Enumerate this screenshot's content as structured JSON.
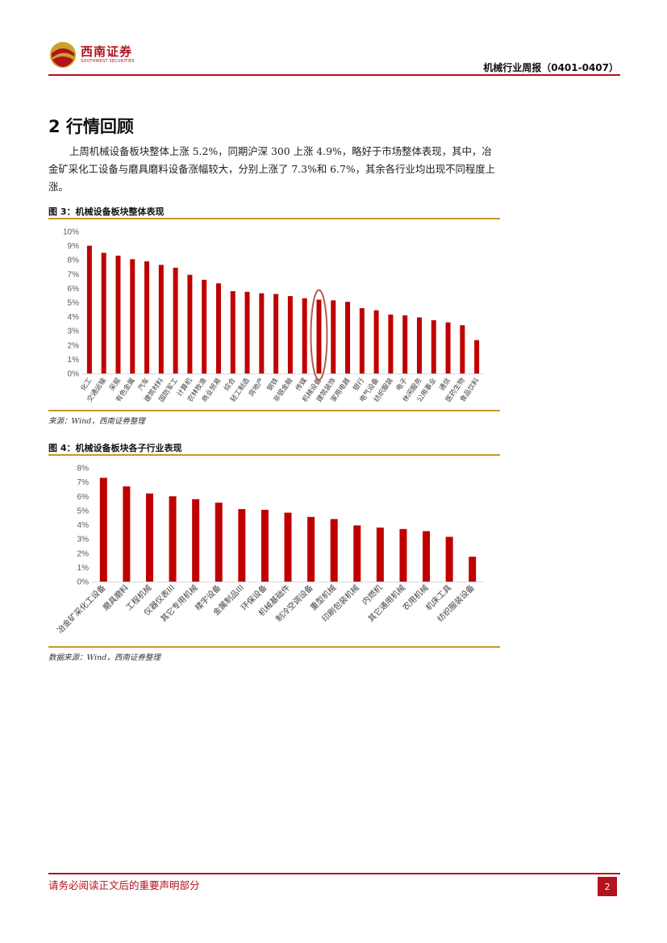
{
  "header": {
    "logo_name": "西南证券",
    "logo_subtitle": "SOUTHWEST SECURITIES",
    "report_title": "机械行业周报（0401-0407）"
  },
  "section": {
    "title": "2 行情回顾",
    "paragraph": "上周机械设备板块整体上涨 5.2%，同期沪深 300 上涨 4.9%，略好于市场整体表现，其中，冶金矿采化工设备与磨具磨料设备涨幅较大，分别上涨了 7.3%和 6.7%，其余各行业均出现不同程度上涨。"
  },
  "figure3": {
    "title": "图 3：机械设备板块整体表现",
    "source": "来源：Wind，西南证券整理"
  },
  "figure4": {
    "title": "图 4：机械设备板块各子行业表现",
    "source": "数据来源：Wind，西南证券整理"
  },
  "footer": {
    "disclaimer": "请务必阅读正文后的重要声明部分",
    "page_number": "2"
  },
  "colors": {
    "accent": "#b3121f",
    "bar": "#c00000",
    "rule": "#c8952f",
    "highlight_ring": "#b85a4a"
  },
  "chart_data": [
    {
      "type": "bar",
      "categories": [
        "化工",
        "交通运输",
        "采掘",
        "有色金属",
        "汽车",
        "建筑材料",
        "国防军工",
        "计算机",
        "农林牧渔",
        "商业贸易",
        "综合",
        "轻工制造",
        "房地产",
        "钢铁",
        "非银金融",
        "传媒",
        "机械设备",
        "建筑装饰",
        "家用电器",
        "银行",
        "电气设备",
        "纺织服装",
        "电子",
        "休闲服务",
        "公用事业",
        "通信",
        "医药生物",
        "食品饮料"
      ],
      "values": [
        9.0,
        8.5,
        8.3,
        8.05,
        7.9,
        7.65,
        7.45,
        6.95,
        6.6,
        6.35,
        5.8,
        5.75,
        5.65,
        5.6,
        5.45,
        5.3,
        5.2,
        5.15,
        5.05,
        4.6,
        4.45,
        4.15,
        4.1,
        3.95,
        3.75,
        3.6,
        3.4,
        2.35
      ],
      "highlight": "机械设备",
      "ylim": [
        0,
        10
      ],
      "y_ticks": [
        "0%",
        "1%",
        "2%",
        "3%",
        "4%",
        "5%",
        "6%",
        "7%",
        "8%",
        "9%",
        "10%"
      ],
      "grid": false
    },
    {
      "type": "bar",
      "categories": [
        "冶金矿采化工设备",
        "磨具磨料",
        "工程机械",
        "仪器仪表III",
        "其它专用机械",
        "楼宇设备",
        "金属制品III",
        "环保设备",
        "机械基础件",
        "制冷空调设备",
        "重型机械",
        "印刷包装机械",
        "内燃机",
        "其它通用机械",
        "农用机械",
        "机床工具",
        "纺织服装设备"
      ],
      "values": [
        7.3,
        6.7,
        6.2,
        6.0,
        5.8,
        5.55,
        5.1,
        5.05,
        4.85,
        4.55,
        4.4,
        3.95,
        3.8,
        3.7,
        3.55,
        3.15,
        1.75
      ],
      "ylim": [
        0,
        8
      ],
      "y_ticks": [
        "0%",
        "1%",
        "2%",
        "3%",
        "4%",
        "5%",
        "6%",
        "7%",
        "8%"
      ],
      "grid": false
    }
  ]
}
